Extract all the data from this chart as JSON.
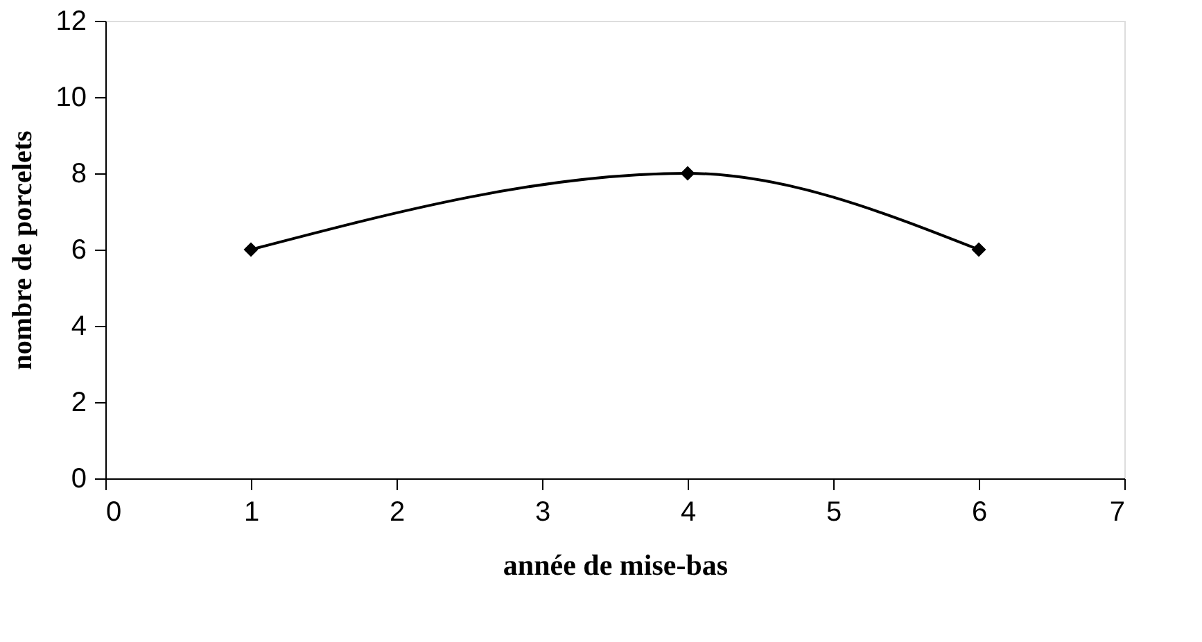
{
  "chart_data": {
    "type": "line",
    "xlabel": "année de mise-bas",
    "ylabel": "nombre de porcelets",
    "x": [
      1,
      4,
      6
    ],
    "series": [
      {
        "color": "#000000",
        "values": [
          6,
          8,
          6
        ]
      }
    ],
    "xlim": [
      0,
      7
    ],
    "xticks": [
      0,
      1,
      2,
      3,
      4,
      5,
      6,
      7
    ],
    "ylim": [
      0,
      12
    ],
    "yticks": [
      0,
      2,
      4,
      6,
      8,
      10,
      12
    ],
    "grid": false,
    "marker": "diamond",
    "line_style": "solid"
  }
}
